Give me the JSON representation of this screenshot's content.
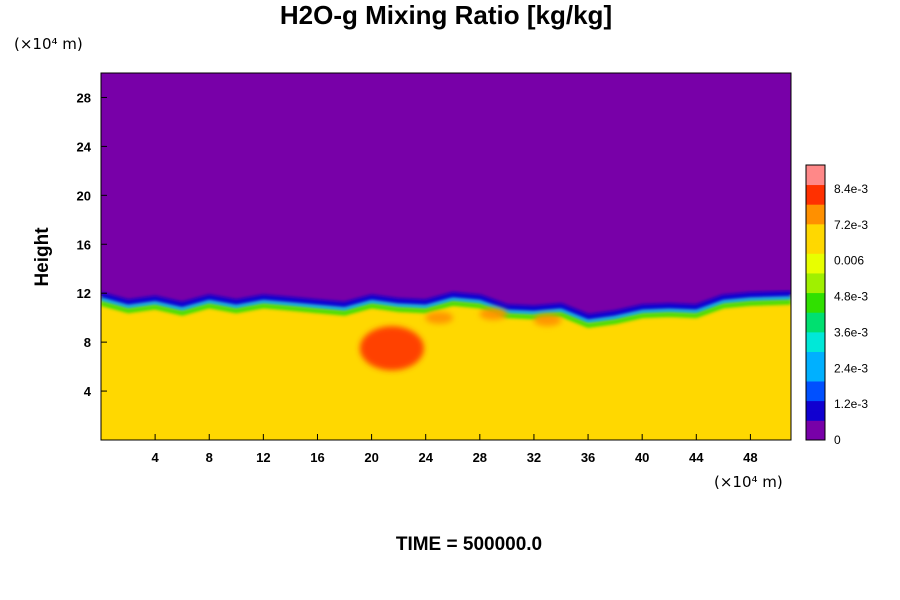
{
  "chart_data": {
    "type": "heatmap",
    "title": "H2O-g Mixing Ratio [kg/kg]",
    "ylabel": "Height",
    "xlabel": "",
    "x_unit": "(×10⁴ m)",
    "y_unit": "(×10⁴ m)",
    "xlim": [
      0,
      51
    ],
    "ylim": [
      0,
      30
    ],
    "x_ticks": [
      "4",
      "8",
      "12",
      "16",
      "20",
      "24",
      "28",
      "32",
      "36",
      "40",
      "44",
      "48"
    ],
    "y_ticks": [
      "4",
      "8",
      "12",
      "16",
      "20",
      "24",
      "28"
    ],
    "colorbar": {
      "min": 0,
      "max": 0.0092,
      "tick_labels": [
        "8.4e-3",
        "7.2e-3",
        "0.006",
        "4.8e-3",
        "3.6e-3",
        "2.4e-3",
        "1.2e-3",
        "0"
      ],
      "tick_values": [
        0.0084,
        0.0072,
        0.006,
        0.0048,
        0.0036,
        0.0024,
        0.0012,
        0
      ],
      "colors_low_to_high": [
        "#7800a8",
        "#1000d0",
        "#0050ff",
        "#00b0ff",
        "#00e8d8",
        "#00e070",
        "#30e000",
        "#a0f000",
        "#e8ff00",
        "#ffd800",
        "#ff9000",
        "#ff3000",
        "#ff8888"
      ]
    },
    "field": {
      "upper_value": 0,
      "lower_value": 0.0065,
      "interface_height_samples": {
        "x": [
          0,
          2,
          4,
          6,
          8,
          10,
          12,
          14,
          16,
          18,
          20,
          22,
          24,
          26,
          28,
          30,
          32,
          34,
          36,
          38,
          40,
          42,
          44,
          46,
          48,
          51
        ],
        "y": [
          11.8,
          11.2,
          11.5,
          11.0,
          11.6,
          11.2,
          11.6,
          11.4,
          11.2,
          11.0,
          11.6,
          11.3,
          11.2,
          11.8,
          11.6,
          10.8,
          10.7,
          10.9,
          10.0,
          10.3,
          10.8,
          10.9,
          10.8,
          11.6,
          11.8,
          11.9
        ]
      },
      "moist_patches": [
        {
          "x": 21.5,
          "y": 7.5,
          "value": 0.008
        },
        {
          "x": 25.0,
          "y": 10.0,
          "value": 0.0072
        },
        {
          "x": 29.0,
          "y": 10.3,
          "value": 0.0072
        },
        {
          "x": 33.0,
          "y": 9.8,
          "value": 0.0072
        }
      ]
    }
  },
  "footer": {
    "time_label": "TIME = 500000.0"
  }
}
